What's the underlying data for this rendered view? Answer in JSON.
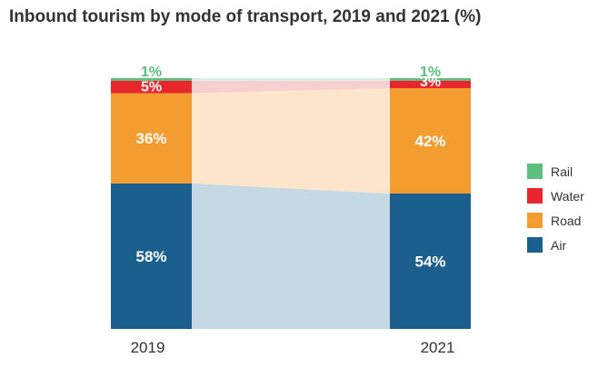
{
  "chart_data": {
    "type": "bar",
    "stacked": true,
    "title": "Inbound tourism by mode of transport, 2019 and 2021 (%)",
    "categories": [
      "2019",
      "2021"
    ],
    "series": [
      {
        "name": "Air",
        "values": [
          58,
          54
        ],
        "labels": [
          "58%",
          "54%"
        ],
        "color": "#1b5f8e",
        "band_color": "#c5d9e4"
      },
      {
        "name": "Road",
        "values": [
          36,
          42
        ],
        "labels": [
          "36%",
          "42%"
        ],
        "color": "#f39c30",
        "band_color": "#fce5ca"
      },
      {
        "name": "Water",
        "values": [
          5,
          3
        ],
        "labels": [
          "5%",
          "3%"
        ],
        "color": "#e8262e",
        "band_color": "#f8cfd1"
      },
      {
        "name": "Rail",
        "values": [
          1,
          1
        ],
        "labels": [
          "1%",
          "1%"
        ],
        "color": "#5cbf7e",
        "band_color": "#d6efe0"
      }
    ],
    "legend": {
      "position": "right",
      "order": [
        "Rail",
        "Water",
        "Road",
        "Air"
      ]
    },
    "ylim": [
      0,
      100
    ],
    "xlabel": "",
    "ylabel": ""
  }
}
